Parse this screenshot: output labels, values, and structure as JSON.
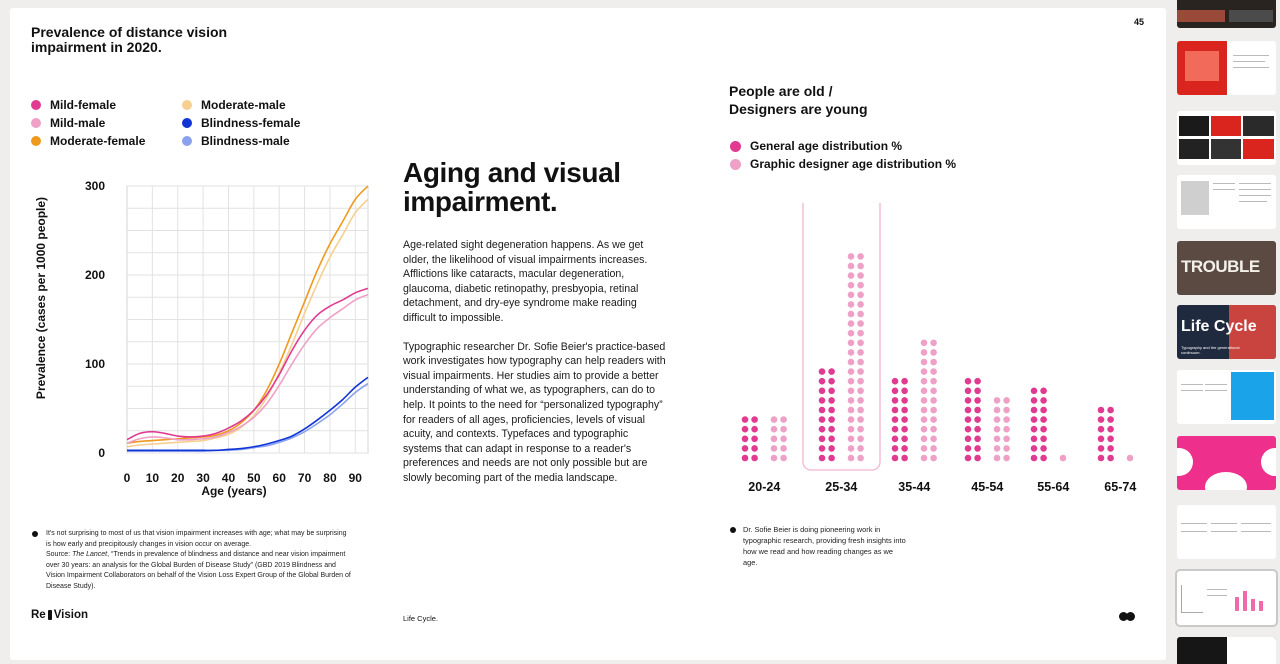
{
  "page_number": "45",
  "left_chart": {
    "title": "Prevalence of distance vision impairment in 2020.",
    "legend": [
      {
        "label": "Mild-female",
        "color": "#e03a91"
      },
      {
        "label": "Mild-male",
        "color": "#eea0c7"
      },
      {
        "label": "Moderate-female",
        "color": "#ee9a1e"
      },
      {
        "label": "Moderate-male",
        "color": "#f7cf90"
      },
      {
        "label": "Blindness-female",
        "color": "#1034d6"
      },
      {
        "label": "Blindness-male",
        "color": "#8aa1ef"
      }
    ],
    "ylabel": "Prevalence (cases per 1000 people)",
    "xlabel": "Age (years)",
    "yticks": [
      "0",
      "100",
      "200",
      "300"
    ],
    "xticks": [
      "0",
      "10",
      "20",
      "30",
      "40",
      "50",
      "60",
      "70",
      "80",
      "90"
    ]
  },
  "chart_data": [
    {
      "type": "line",
      "title": "Prevalence of distance vision impairment in 2020.",
      "xlabel": "Age (years)",
      "ylabel": "Prevalence (cases per 1000 people)",
      "xlim": [
        0,
        95
      ],
      "ylim": [
        0,
        300
      ],
      "grid": true,
      "x": [
        0,
        5,
        10,
        15,
        20,
        25,
        30,
        35,
        40,
        45,
        50,
        55,
        60,
        65,
        70,
        75,
        80,
        85,
        90,
        95
      ],
      "series": [
        {
          "name": "Mild-female",
          "color": "#e03a91",
          "values": [
            15,
            22,
            24,
            22,
            19,
            18,
            19,
            22,
            28,
            36,
            48,
            65,
            88,
            115,
            138,
            155,
            165,
            172,
            180,
            185
          ]
        },
        {
          "name": "Mild-male",
          "color": "#eea0c7",
          "values": [
            11,
            16,
            18,
            17,
            15,
            15,
            16,
            18,
            23,
            30,
            40,
            55,
            76,
            100,
            122,
            140,
            152,
            162,
            172,
            178
          ]
        },
        {
          "name": "Moderate-female",
          "color": "#ee9a1e",
          "values": [
            11,
            13,
            14,
            15,
            16,
            17,
            18,
            20,
            25,
            34,
            48,
            70,
            100,
            135,
            170,
            205,
            235,
            260,
            285,
            300
          ]
        },
        {
          "name": "Moderate-male",
          "color": "#f7cf90",
          "values": [
            7,
            9,
            10,
            11,
            12,
            13,
            14,
            17,
            21,
            29,
            42,
            62,
            90,
            122,
            157,
            190,
            220,
            245,
            270,
            285
          ]
        },
        {
          "name": "Blindness-female",
          "color": "#1034d6",
          "values": [
            3,
            3,
            3,
            3,
            3,
            3,
            3,
            3,
            4,
            5,
            7,
            10,
            14,
            19,
            27,
            37,
            48,
            60,
            74,
            85
          ]
        },
        {
          "name": "Blindness-male",
          "color": "#8aa1ef",
          "values": [
            2,
            2,
            2,
            2,
            2,
            2,
            2,
            3,
            3,
            4,
            6,
            8,
            12,
            17,
            24,
            33,
            43,
            55,
            68,
            78
          ]
        }
      ]
    },
    {
      "type": "bar",
      "title": "People are old / Designers are young",
      "categories": [
        "20-24",
        "25-34",
        "35-44",
        "45-54",
        "55-64",
        "65-74"
      ],
      "highlighted_category": "25-34",
      "series": [
        {
          "name": "General age distribution %",
          "color": "#e03a91",
          "values": [
            10,
            20,
            18,
            18,
            16,
            12
          ]
        },
        {
          "name": "Graphic designer age distribution %",
          "color": "#eea0c7",
          "values": [
            10,
            44,
            26,
            14,
            1,
            1
          ]
        }
      ]
    }
  ],
  "body": {
    "headline": "Aging and visual impairment.",
    "paragraph1": "Age-related sight degeneration happens. As we get older, the likelihood of visual impairments increases. Afflictions like cataracts, macular degeneration, glaucoma, diabetic retinopathy, presbyopia, retinal detachment, and dry-eye syndrome make reading difficult to impossible.",
    "paragraph2": "Typographic researcher Dr. Sofie Beier's practice-based work investigates how typography can help readers with visual impairments. Her studies aim to provide a better understanding of what we, as typographers, can do to help. It points to the need for “personalized typography” for readers of all ages, proficiencies, levels of visual acuity, and contexts. Typefaces and typographic systems that can adapt in response to a reader's preferences and needs are not only possible but are slowly becoming part of the media landscape."
  },
  "footnote_left": {
    "line1": "It's not surprising to most of us that vision impairment increases with age; what may be surprising is how early and precipitously changes in vision occur on average.",
    "source_prefix": "Source: ",
    "source_journal": "The Lancet",
    "source_rest": ", “Trends in prevalence of blindness and distance and near vision impairment over 30 years: an analysis for the Global Burden of Disease Study” (GBD 2019 Blindness and Vision Impairment Collaborators on behalf of the Vision Loss Expert Group of the Global Burden of Disease Study)."
  },
  "right_chart": {
    "title_line1": "People are old /",
    "title_line2": "Designers are young",
    "legend": [
      {
        "label": "General age distribution %",
        "color": "#e03a91"
      },
      {
        "label": "Graphic designer age distribution %",
        "color": "#eea0c7"
      }
    ]
  },
  "footnote_right": "Dr. Sofie Beier is doing pioneering work in typographic research, providing fresh insights into how we read and how reading changes as we age.",
  "footer": {
    "brand_left": "Re",
    "brand_right": "Vision",
    "center": "Life Cycle."
  },
  "thumbnails": {
    "life_cycle_title": "Life Cycle",
    "life_cycle_subtitle": "Typography and the generational continuum.",
    "trouble_word": "TROUBLE"
  }
}
